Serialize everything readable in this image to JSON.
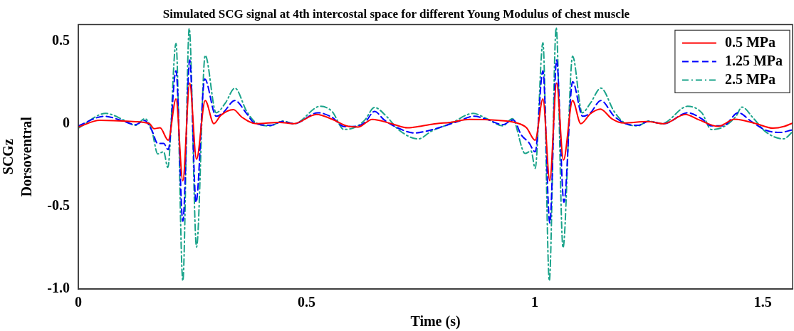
{
  "chart_data": {
    "type": "line",
    "title": "Simulated SCG signal at 4th intercostal space for different Young Modulus of chest muscle",
    "xlabel": "Time (s)",
    "ylabel": "SCGz\nDorsoventral",
    "xlim": [
      0,
      1.565
    ],
    "xticks": [
      0,
      0.5,
      1,
      1.5
    ],
    "ylim": [
      -1.0,
      0.6
    ],
    "yticks": [
      0.5,
      0,
      -0.5,
      {
        "value": -1.0,
        "label": "-1.0"
      }
    ],
    "grid": false,
    "legend": "top right",
    "marker": "none",
    "series": [
      {
        "name": "0.5 MPa",
        "color": "#ff0000",
        "line_style": "solid",
        "x": [
          0,
          0.047,
          0.12,
          0.156,
          0.166,
          0.179,
          0.197,
          0.214,
          0.229,
          0.244,
          0.259,
          0.278,
          0.297,
          0.312,
          0.34,
          0.358,
          0.39,
          0.441,
          0.472,
          0.522,
          0.556,
          0.587,
          0.613,
          0.644,
          0.686,
          0.722,
          0.748,
          0.784,
          0.815,
          0.857,
          0.919,
          0.961,
          0.982,
          1.001,
          1.018,
          1.033,
          1.048,
          1.063,
          1.083,
          1.101,
          1.122,
          1.144,
          1.169,
          1.195,
          1.246,
          1.283,
          1.33,
          1.36,
          1.402,
          1.438,
          1.485,
          1.522,
          1.547,
          1.565
        ],
        "values": [
          -0.02,
          0.02,
          0.013,
          0,
          -0.03,
          -0.025,
          -0.1,
          0.15,
          -0.345,
          0.245,
          -0.215,
          0.14,
          0,
          0.05,
          0.085,
          0.04,
          0,
          0.008,
          0,
          0.056,
          0.027,
          -0.013,
          -0.02,
          0.026,
          0,
          -0.025,
          -0.016,
          0,
          0.008,
          0.026,
          0.02,
          0.004,
          -0.025,
          -0.1,
          0.15,
          -0.345,
          0.245,
          -0.22,
          0.14,
          0,
          0.06,
          0.088,
          0.03,
          0.004,
          0.013,
          0,
          0.056,
          0.023,
          -0.016,
          0.027,
          0,
          -0.027,
          -0.016,
          0.004
        ]
      },
      {
        "name": "1.25 MPa",
        "color": "#0000ff",
        "line_style": "dashed",
        "x": [
          0,
          0.057,
          0.098,
          0.125,
          0.145,
          0.161,
          0.174,
          0.187,
          0.197,
          0.214,
          0.229,
          0.244,
          0.258,
          0.277,
          0.302,
          0.317,
          0.343,
          0.369,
          0.384,
          0.421,
          0.447,
          0.473,
          0.525,
          0.556,
          0.582,
          0.608,
          0.628,
          0.649,
          0.67,
          0.701,
          0.737,
          0.763,
          0.795,
          0.831,
          0.867,
          0.898,
          0.93,
          0.953,
          0.971,
          0.987,
          1.001,
          1.018,
          1.033,
          1.048,
          1.064,
          1.083,
          1.105,
          1.122,
          1.145,
          1.174,
          1.2,
          1.226,
          1.249,
          1.283,
          1.335,
          1.366,
          1.387,
          1.413,
          1.446,
          1.475,
          1.506,
          1.537,
          1.563
        ],
        "values": [
          -0.013,
          0.045,
          0.016,
          -0.006,
          0.019,
          -0.04,
          -0.12,
          -0.12,
          -0.157,
          0.32,
          -0.59,
          0.385,
          -0.475,
          0.27,
          0.045,
          0.066,
          0.14,
          0.06,
          0.008,
          -0.01,
          0.013,
          0,
          0.066,
          0.038,
          -0.017,
          -0.016,
          0.008,
          0.074,
          0.023,
          -0.027,
          -0.056,
          -0.045,
          -0.02,
          0.013,
          0.045,
          0.023,
          -0.006,
          0.023,
          -0.07,
          -0.114,
          -0.17,
          0.32,
          -0.6,
          0.385,
          -0.475,
          0.254,
          0.045,
          0.066,
          0.14,
          0.045,
          0,
          -0.01,
          0.013,
          0,
          0.066,
          0.03,
          -0.013,
          -0.013,
          0.066,
          0.013,
          -0.039,
          -0.053,
          -0.039
        ]
      },
      {
        "name": "2.5 MPa",
        "color": "#1aa38a",
        "line_style": "dashdot",
        "x": [
          0,
          0.06,
          0.099,
          0.125,
          0.146,
          0.161,
          0.174,
          0.187,
          0.196,
          0.214,
          0.229,
          0.243,
          0.259,
          0.278,
          0.302,
          0.322,
          0.343,
          0.369,
          0.39,
          0.421,
          0.447,
          0.473,
          0.53,
          0.556,
          0.582,
          0.608,
          0.628,
          0.649,
          0.675,
          0.701,
          0.745,
          0.774,
          0.815,
          0.865,
          0.893,
          0.93,
          0.951,
          0.979,
          0.992,
          1.001,
          1.018,
          1.032,
          1.047,
          1.062,
          1.083,
          1.104,
          1.122,
          1.145,
          1.174,
          1.195,
          1.226,
          1.249,
          1.278,
          1.335,
          1.366,
          1.387,
          1.413,
          1.441,
          1.454,
          1.48,
          1.506,
          1.545,
          1.565
        ],
        "values": [
          -0.027,
          0.062,
          0.023,
          -0.01,
          0.03,
          -0.04,
          -0.183,
          -0.17,
          -0.265,
          0.485,
          -0.95,
          0.576,
          -0.746,
          0.413,
          0.066,
          0.124,
          0.215,
          0.074,
          0.004,
          -0.013,
          0.016,
          0,
          0.105,
          0.074,
          -0.035,
          -0.02,
          0.023,
          0.098,
          0.045,
          -0.035,
          -0.092,
          -0.045,
          0,
          0.062,
          0.033,
          -0.013,
          0.03,
          -0.18,
          -0.165,
          -0.27,
          0.49,
          -0.95,
          0.58,
          -0.75,
          0.408,
          0.066,
          0.124,
          0.215,
          0.074,
          0.008,
          -0.013,
          0.016,
          0,
          0.105,
          0.066,
          -0.035,
          -0.02,
          0.045,
          0.1,
          0.03,
          -0.049,
          -0.092,
          -0.049
        ]
      }
    ]
  }
}
